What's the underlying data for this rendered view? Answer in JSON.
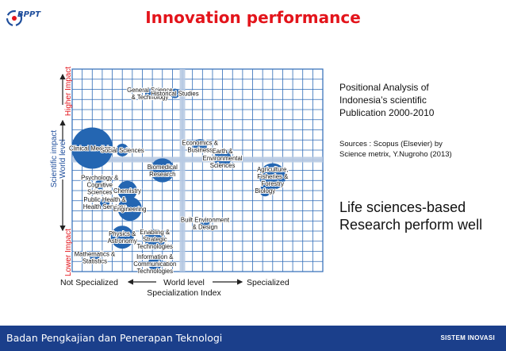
{
  "header": {
    "logo_text": "BPPT",
    "title": "Innovation performance"
  },
  "side_panel": {
    "description": "Positional Analysis of Indonesia’s scientific Publication 2000-2010",
    "source": "Sources : Scopus (Elsevier) by Science metrix, Y.Nugroho (2013)",
    "conclusion": "Life sciences-based Research perform well"
  },
  "footer": {
    "institution": "Badan Pengkajian dan Penerapan Teknologi",
    "program": "SISTEM INOVASI"
  },
  "colors": {
    "title": "#e3141b",
    "bubble": "#2466b2",
    "grid": "#2e6bb7",
    "quadrant_divider": "#b9cbe3",
    "footer": "#1b3f8b"
  },
  "chart_data": {
    "type": "bubble",
    "y_axis": {
      "title": "Scientific impact",
      "subtitle": "World level",
      "top_label": "Higher Impact",
      "bottom_label": "Lower Impact"
    },
    "x_axis": {
      "left_label": "Not Specialized",
      "center_label": "World level",
      "right_label": "Specialized",
      "title": "Specialization Index"
    },
    "grid": true,
    "points": [
      {
        "label": [
          "General Science",
          "& Technology"
        ],
        "x": 0.31,
        "y": 0.88,
        "size": 0.07
      },
      {
        "label": [
          "Historical Studies"
        ],
        "x": 0.41,
        "y": 0.88,
        "size": 0.05
      },
      {
        "label": [
          "Clinical Medicine"
        ],
        "x": 0.08,
        "y": 0.61,
        "size": 0.36
      },
      {
        "label": [
          "Social Sciences"
        ],
        "x": 0.2,
        "y": 0.6,
        "size": 0.11
      },
      {
        "label": [
          "Economics &",
          "Business"
        ],
        "x": 0.51,
        "y": 0.62,
        "size": 0.12
      },
      {
        "label": [
          "Earth &",
          "Environmental",
          "Sciences"
        ],
        "x": 0.6,
        "y": 0.56,
        "size": 0.15
      },
      {
        "label": [
          "Agriculture,",
          "Fisheries &",
          "Forestry"
        ],
        "x": 0.8,
        "y": 0.47,
        "size": 0.23
      },
      {
        "label": [
          "Biology"
        ],
        "x": 0.77,
        "y": 0.4,
        "size": 0.1
      },
      {
        "label": [
          "Biomedical",
          "Research"
        ],
        "x": 0.36,
        "y": 0.5,
        "size": 0.21
      },
      {
        "label": [
          "Psychology &",
          "Cognitive",
          "Sciences"
        ],
        "x": 0.11,
        "y": 0.43,
        "size": 0.08
      },
      {
        "label": [
          "Chemistry"
        ],
        "x": 0.22,
        "y": 0.4,
        "size": 0.17
      },
      {
        "label": [
          "Public Health &",
          "Health Services"
        ],
        "x": 0.13,
        "y": 0.34,
        "size": 0.08
      },
      {
        "label": [
          "Engineering"
        ],
        "x": 0.23,
        "y": 0.31,
        "size": 0.21
      },
      {
        "label": [
          "Built Environment",
          "& Design"
        ],
        "x": 0.53,
        "y": 0.24,
        "size": 0.06
      },
      {
        "label": [
          "Physics &",
          "Astronomy"
        ],
        "x": 0.2,
        "y": 0.17,
        "size": 0.2
      },
      {
        "label": [
          "Enabling &",
          "Strategic",
          "Technologies"
        ],
        "x": 0.33,
        "y": 0.16,
        "size": 0.18
      },
      {
        "label": [
          "Mathematics &",
          "Statistics"
        ],
        "x": 0.09,
        "y": 0.07,
        "size": 0.05
      },
      {
        "label": [
          "Information &",
          "Communication",
          "Technologies"
        ],
        "x": 0.33,
        "y": 0.04,
        "size": 0.12
      }
    ]
  }
}
